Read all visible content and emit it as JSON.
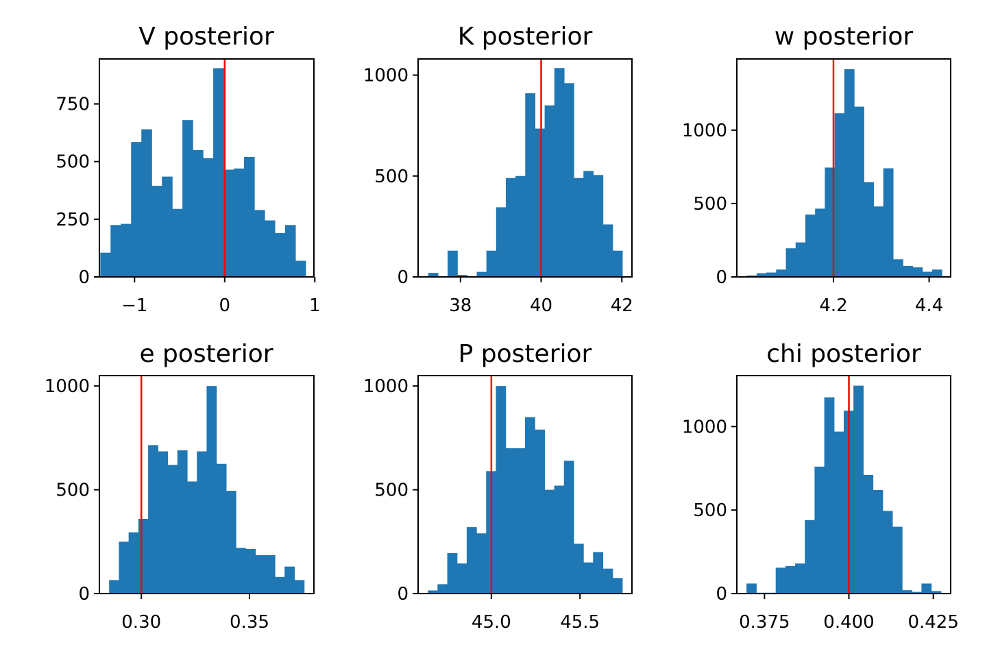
{
  "chart_data": [
    {
      "type": "bar",
      "title": "V posterior",
      "xlabel": "",
      "ylabel": "",
      "xlim": [
        -1.39,
        0.99
      ],
      "ylim": [
        0,
        945
      ],
      "xticks": [
        -1,
        0,
        1
      ],
      "xtick_labels": [
        "−1",
        "0",
        "1"
      ],
      "yticks": [
        0,
        250,
        500,
        750
      ],
      "ytick_labels": [
        "0",
        "250",
        "500",
        "750"
      ],
      "bin_start": -1.38,
      "bin_width": 0.1139,
      "values": [
        105,
        225,
        230,
        585,
        640,
        395,
        435,
        295,
        680,
        550,
        515,
        905,
        465,
        470,
        520,
        290,
        245,
        190,
        225,
        70
      ],
      "reference_line": 0,
      "bar_color": "#1f77b4",
      "line_color": "#ff0000"
    },
    {
      "type": "bar",
      "title": "K posterior",
      "xlabel": "",
      "ylabel": "",
      "xlim": [
        36.95,
        42.25
      ],
      "ylim": [
        0,
        1080
      ],
      "xticks": [
        38,
        40,
        42
      ],
      "xtick_labels": [
        "38",
        "40",
        "42"
      ],
      "yticks": [
        0,
        500,
        1000
      ],
      "ytick_labels": [
        "0",
        "500",
        "1000"
      ],
      "bin_start": 37.2,
      "bin_width": 0.2405,
      "values": [
        20,
        0,
        130,
        10,
        0,
        25,
        130,
        345,
        490,
        500,
        910,
        735,
        850,
        1035,
        960,
        490,
        525,
        505,
        260,
        130
      ],
      "reference_line": 40,
      "bar_color": "#1f77b4",
      "line_color": "#ff0000"
    },
    {
      "type": "bar",
      "title": "w posterior",
      "xlabel": "",
      "ylabel": "",
      "xlim": [
        3.998,
        4.445
      ],
      "ylim": [
        0,
        1485
      ],
      "xticks": [
        4.2,
        4.4
      ],
      "xtick_labels": [
        "4.2",
        "4.4"
      ],
      "yticks": [
        0,
        500,
        1000
      ],
      "ytick_labels": [
        "0",
        "500",
        "1000"
      ],
      "bin_start": 4.019,
      "bin_width": 0.02037,
      "values": [
        10,
        25,
        30,
        50,
        195,
        235,
        425,
        465,
        745,
        1115,
        1415,
        1160,
        645,
        480,
        740,
        120,
        75,
        65,
        35,
        50
      ],
      "reference_line": 4.2,
      "bar_color": "#1f77b4",
      "line_color": "#ff0000"
    },
    {
      "type": "bar",
      "title": "e posterior",
      "xlabel": "",
      "ylabel": "",
      "xlim": [
        0.2806,
        0.3798
      ],
      "ylim": [
        0,
        1050
      ],
      "xticks": [
        0.3,
        0.35
      ],
      "xtick_labels": [
        "0.30",
        "0.35"
      ],
      "yticks": [
        0,
        500,
        1000
      ],
      "ytick_labels": [
        "0",
        "500",
        "1000"
      ],
      "bin_start": 0.2851,
      "bin_width": 0.004508,
      "values": [
        65,
        250,
        295,
        360,
        715,
        685,
        620,
        690,
        540,
        685,
        1000,
        625,
        495,
        220,
        215,
        185,
        185,
        80,
        130,
        65
      ],
      "reference_line": 0.3,
      "bar_color": "#1f77b4",
      "line_color": "#ff0000"
    },
    {
      "type": "bar",
      "title": "P posterior",
      "xlabel": "",
      "ylabel": "",
      "xlim": [
        44.5867,
        45.7933
      ],
      "ylim": [
        0,
        1050
      ],
      "xticks": [
        45.0,
        45.5
      ],
      "xtick_labels": [
        "45.0",
        "45.5"
      ],
      "yticks": [
        0,
        500,
        1000
      ],
      "ytick_labels": [
        "0",
        "500",
        "1000"
      ],
      "bin_start": 44.6415,
      "bin_width": 0.05485,
      "values": [
        15,
        45,
        195,
        145,
        320,
        290,
        590,
        1000,
        700,
        700,
        850,
        790,
        500,
        520,
        640,
        240,
        150,
        200,
        120,
        75
      ],
      "reference_line": 45.0,
      "bar_color": "#1f77b4",
      "line_color": "#ff0000"
    },
    {
      "type": "bar",
      "title": "chi posterior",
      "xlabel": "",
      "ylabel": "",
      "xlim": [
        0.36681,
        0.43014
      ],
      "ylim": [
        0,
        1305
      ],
      "xticks": [
        0.375,
        0.4,
        0.425
      ],
      "xtick_labels": [
        "0.375",
        "0.400",
        "0.425"
      ],
      "bin_start": 0.36968,
      "bin_width": 0.002879,
      "yticks": [
        0,
        500,
        1000
      ],
      "ytick_labels": [
        "0",
        "500",
        "1000"
      ],
      "values": [
        60,
        5,
        5,
        155,
        165,
        180,
        440,
        760,
        1175,
        970,
        1095,
        1245,
        710,
        620,
        495,
        400,
        20,
        10,
        60,
        15
      ],
      "reference_line": 0.4,
      "bar_color": "#1f77b4",
      "line_color": "#ff0000"
    }
  ]
}
